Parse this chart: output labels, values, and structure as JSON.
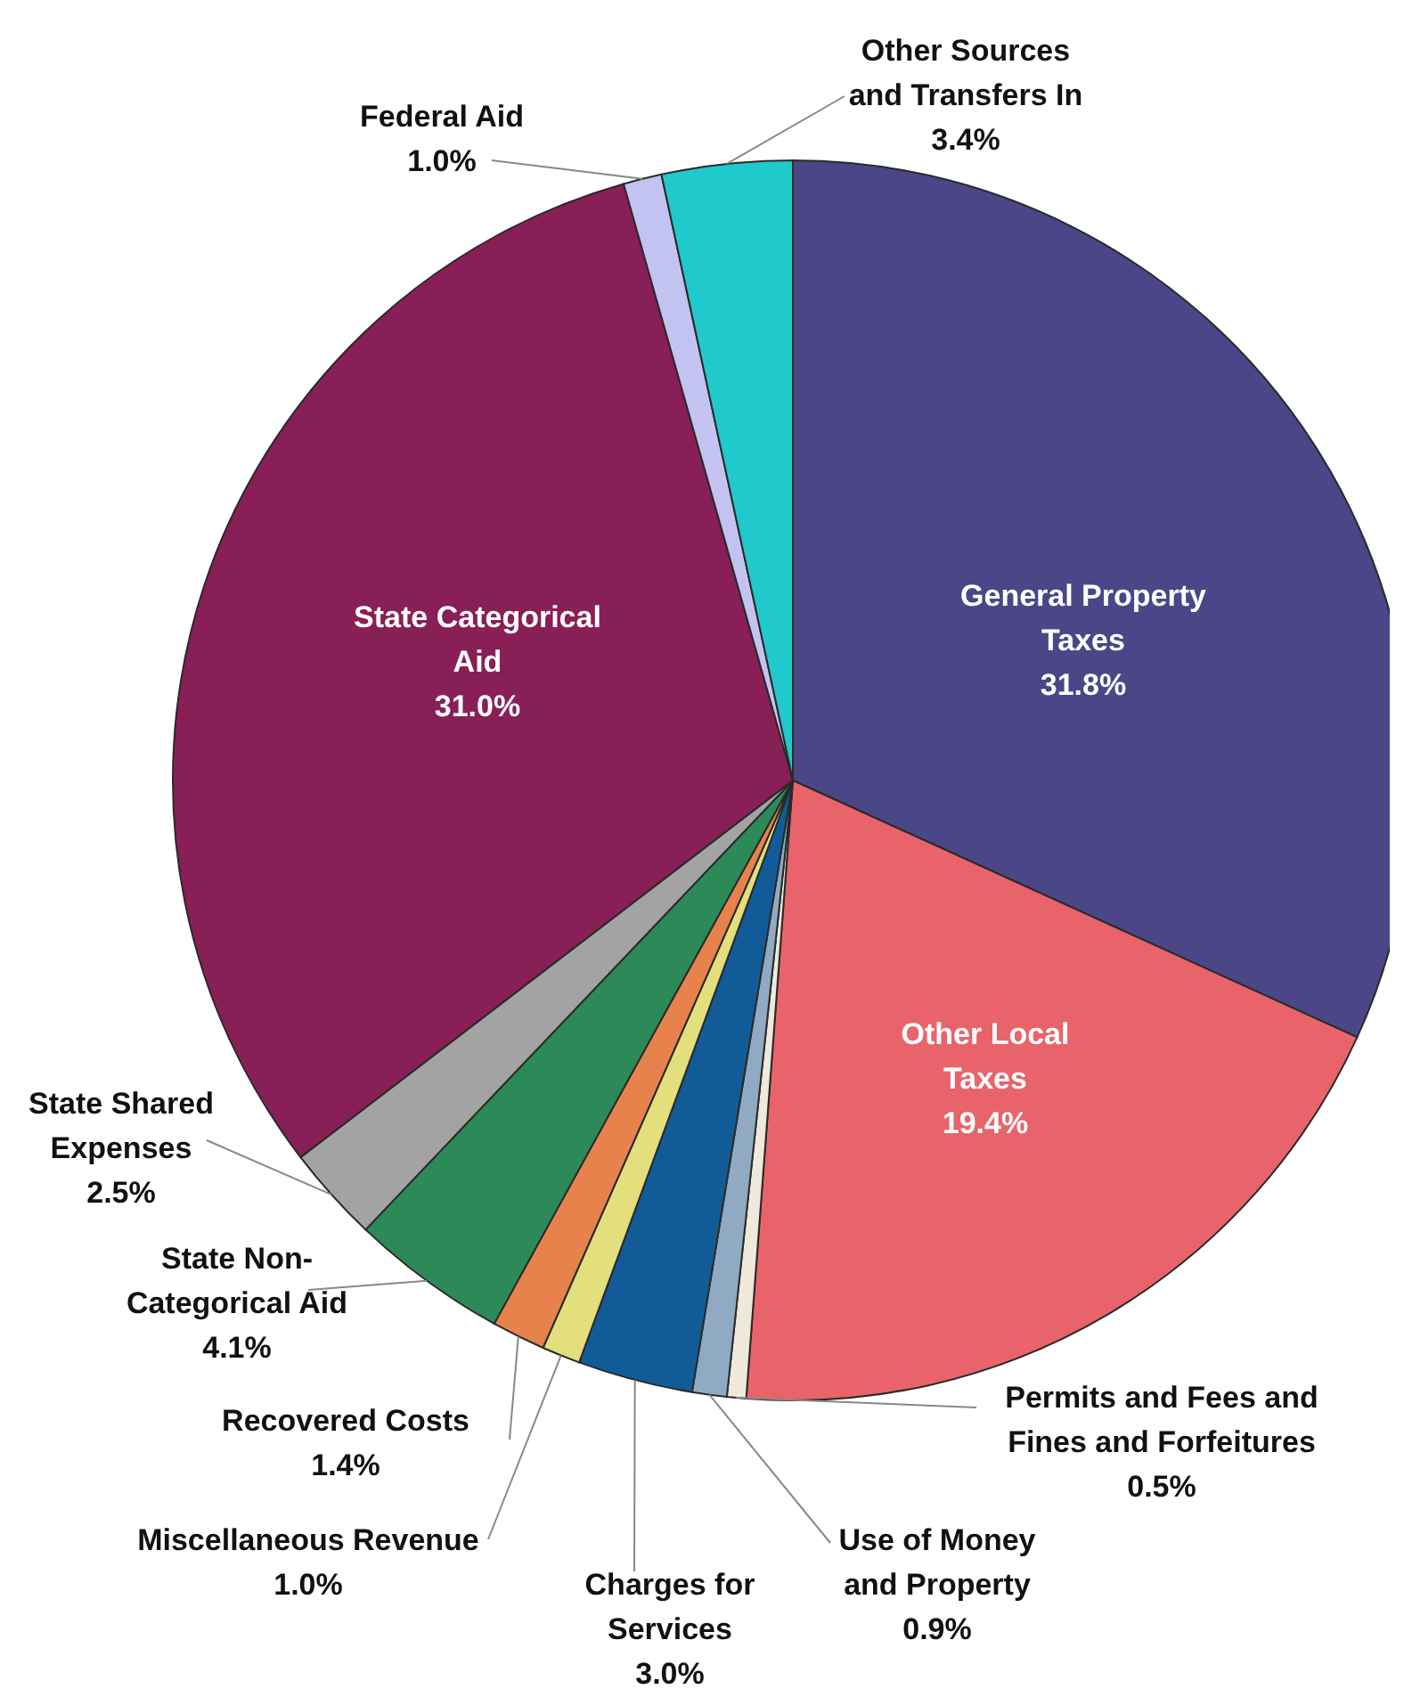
{
  "chart_data": {
    "type": "pie",
    "categories": [
      "General Property Taxes",
      "Other Local Taxes",
      "Permits and Fees and Fines and Forfeitures",
      "Use of Money and Property",
      "Charges for Services",
      "Miscellaneous Revenue",
      "Recovered Costs",
      "State Non-Categorical Aid",
      "State Shared Expenses",
      "State Categorical Aid",
      "Federal Aid",
      "Other Sources and Transfers In"
    ],
    "values": [
      31.8,
      19.4,
      0.5,
      0.9,
      3.0,
      1.0,
      1.4,
      4.1,
      2.5,
      31.0,
      1.0,
      3.4
    ],
    "colors": [
      "#4b4687",
      "#e8646a",
      "#efe9dc",
      "#8faac2",
      "#115c98",
      "#e2df7c",
      "#e8824c",
      "#2c8a58",
      "#a3a3a3",
      "#881f57",
      "#c3c3f2",
      "#1fc9cc"
    ],
    "value_labels": [
      "31.8%",
      "19.4%",
      "0.5%",
      "0.9%",
      "3.0%",
      "1.0%",
      "1.4%",
      "4.1%",
      "2.5%",
      "31.0%",
      "1.0%",
      "3.4%"
    ]
  }
}
